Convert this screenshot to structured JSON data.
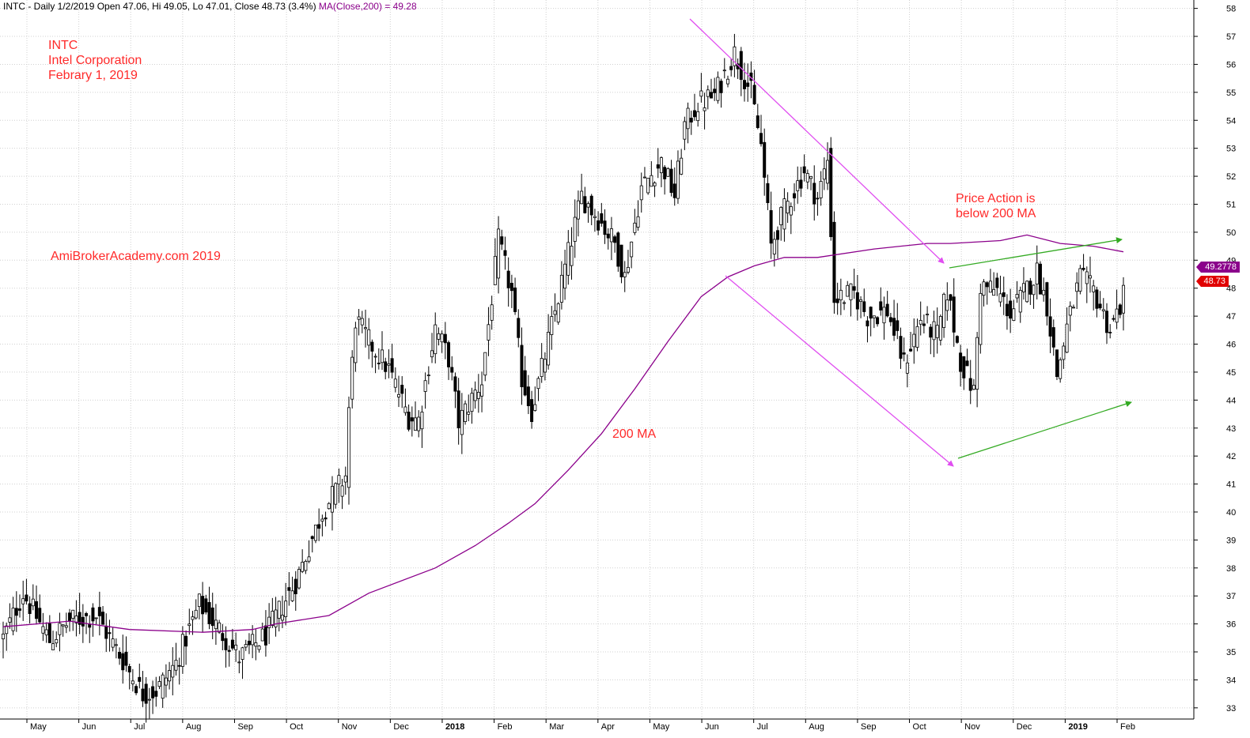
{
  "header": {
    "text": "INTC - Daily 1/2/2019 Open 47.06, Hi 49.05, Lo 47.01, Close 48.73 (3.4%)",
    "ma_text": "MA(Close,200) = 49.28"
  },
  "annotations": {
    "ticker": "INTC",
    "company": "Intel Corporation",
    "date": "Febrary 1, 2019",
    "website": "AmiBrokerAcademy.com  2019",
    "price_action_1": "Price Action is",
    "price_action_2": "below 200 MA",
    "ma_label": "200 MA"
  },
  "tags": {
    "ma_value": "49.2778",
    "close_value": "48.73"
  },
  "colors": {
    "candle": "#000000",
    "ma_line": "#8b008b",
    "channel_lines": "#e04ef0",
    "triangle_lines": "#33aa22",
    "annotation_text": "#ff2a2a",
    "grid": "#d0d0d0",
    "ma_tag": "#8b008b",
    "close_tag": "#e00000"
  },
  "chart_data": {
    "type": "candlestick",
    "ylim": [
      32.6,
      58.3
    ],
    "y_ticks": [
      33,
      34,
      35,
      36,
      37,
      38,
      39,
      40,
      41,
      42,
      43,
      44,
      45,
      46,
      47,
      48,
      49,
      50,
      51,
      52,
      53,
      54,
      55,
      56,
      57,
      58
    ],
    "x_labels": [
      {
        "label": "May",
        "bold": false
      },
      {
        "label": "Jun",
        "bold": false
      },
      {
        "label": "Jul",
        "bold": false
      },
      {
        "label": "Aug",
        "bold": false
      },
      {
        "label": "Sep",
        "bold": false
      },
      {
        "label": "Oct",
        "bold": false
      },
      {
        "label": "Nov",
        "bold": false
      },
      {
        "label": "Dec",
        "bold": false
      },
      {
        "label": "2018",
        "bold": true
      },
      {
        "label": "Feb",
        "bold": false
      },
      {
        "label": "Mar",
        "bold": false
      },
      {
        "label": "Apr",
        "bold": false
      },
      {
        "label": "May",
        "bold": false
      },
      {
        "label": "Jun",
        "bold": false
      },
      {
        "label": "Jul",
        "bold": false
      },
      {
        "label": "Aug",
        "bold": false
      },
      {
        "label": "Sep",
        "bold": false
      },
      {
        "label": "Oct",
        "bold": false
      },
      {
        "label": "Nov",
        "bold": false
      },
      {
        "label": "Dec",
        "bold": false
      },
      {
        "label": "2019",
        "bold": true
      },
      {
        "label": "Feb",
        "bold": false
      }
    ],
    "price_path": [
      [
        0,
        35.5
      ],
      [
        6,
        37.1
      ],
      [
        14,
        35.4
      ],
      [
        20,
        36.1
      ],
      [
        28,
        36.3
      ],
      [
        35,
        34.9
      ],
      [
        42,
        33.5
      ],
      [
        46,
        33.6
      ],
      [
        52,
        34.6
      ],
      [
        59,
        36.7
      ],
      [
        65,
        35.8
      ],
      [
        71,
        34.8
      ],
      [
        79,
        35.6
      ],
      [
        88,
        37.5
      ],
      [
        96,
        40.0
      ],
      [
        103,
        41.3
      ],
      [
        104,
        43.7
      ],
      [
        106,
        46.9
      ],
      [
        110,
        46.1
      ],
      [
        116,
        45.1
      ],
      [
        122,
        43.4
      ],
      [
        125,
        43.3
      ],
      [
        130,
        46.6
      ],
      [
        134,
        45.5
      ],
      [
        137,
        43.2
      ],
      [
        144,
        44.7
      ],
      [
        149,
        49.7
      ],
      [
        153,
        47.8
      ],
      [
        156,
        44.8
      ],
      [
        159,
        43.6
      ],
      [
        163,
        45.6
      ],
      [
        168,
        48.2
      ],
      [
        174,
        51.3
      ],
      [
        179,
        50.5
      ],
      [
        184,
        49.6
      ],
      [
        187,
        48.4
      ],
      [
        192,
        51.6
      ],
      [
        198,
        52.5
      ],
      [
        202,
        51.3
      ],
      [
        205,
        53.8
      ],
      [
        209,
        54.6
      ],
      [
        214,
        54.9
      ],
      [
        220,
        56.4
      ],
      [
        225,
        55.0
      ],
      [
        228,
        53.1
      ],
      [
        231,
        49.5
      ],
      [
        235,
        50.8
      ],
      [
        241,
        52.2
      ],
      [
        245,
        51.2
      ],
      [
        248,
        52.6
      ],
      [
        250,
        47.6
      ],
      [
        256,
        47.8
      ],
      [
        260,
        47.0
      ],
      [
        266,
        47.2
      ],
      [
        271,
        45.3
      ],
      [
        276,
        46.9
      ],
      [
        281,
        46.3
      ],
      [
        284,
        47.9
      ],
      [
        288,
        45.4
      ],
      [
        292,
        44.3
      ],
      [
        294,
        48.1
      ],
      [
        299,
        47.9
      ],
      [
        303,
        47.1
      ],
      [
        307,
        47.8
      ],
      [
        311,
        48.6
      ],
      [
        314,
        47.4
      ],
      [
        317,
        44.9
      ],
      [
        320,
        46.6
      ],
      [
        324,
        48.4
      ],
      [
        328,
        47.9
      ],
      [
        333,
        46.5
      ],
      [
        337,
        47.7
      ]
    ],
    "ma200": [
      [
        0,
        35.9
      ],
      [
        20,
        36.1
      ],
      [
        38,
        35.8
      ],
      [
        60,
        35.7
      ],
      [
        75,
        35.8
      ],
      [
        82,
        36.0
      ],
      [
        98,
        36.3
      ],
      [
        110,
        37.1
      ],
      [
        130,
        38.0
      ],
      [
        142,
        38.8
      ],
      [
        152,
        39.6
      ],
      [
        160,
        40.3
      ],
      [
        170,
        41.5
      ],
      [
        180,
        42.8
      ],
      [
        190,
        44.4
      ],
      [
        200,
        46.1
      ],
      [
        210,
        47.7
      ],
      [
        218,
        48.4
      ],
      [
        226,
        48.8
      ],
      [
        235,
        49.1
      ],
      [
        245,
        49.1
      ],
      [
        262,
        49.4
      ],
      [
        278,
        49.6
      ],
      [
        285,
        49.6
      ],
      [
        300,
        49.7
      ],
      [
        308,
        49.9
      ],
      [
        318,
        49.6
      ],
      [
        328,
        49.5
      ],
      [
        337,
        49.3
      ]
    ]
  }
}
